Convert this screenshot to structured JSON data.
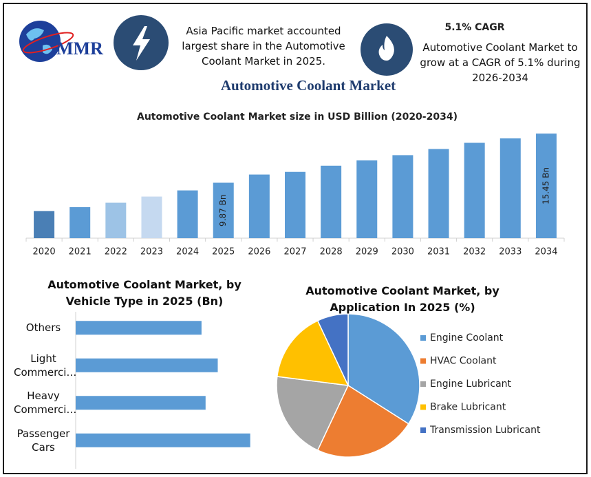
{
  "header": {
    "logo": "MMR",
    "left_note": "Asia Pacific market accounted largest share in the Automotive Coolant Market in 2025.",
    "cagr_title": "5.1% CAGR",
    "cagr_note": "Automotive Coolant Market to grow at a CAGR of 5.1% during 2026-2034",
    "title": "Automotive Coolant Market"
  },
  "chart_data": [
    {
      "type": "bar",
      "title": "Automotive Coolant Market size in USD Billion (2020-2034)",
      "categories": [
        "2020",
        "2021",
        "2022",
        "2023",
        "2024",
        "2025",
        "2026",
        "2027",
        "2028",
        "2029",
        "2030",
        "2031",
        "2032",
        "2033",
        "2034"
      ],
      "values": [
        6.65,
        7.1,
        7.6,
        8.3,
        9.0,
        9.87,
        10.8,
        11.1,
        11.8,
        12.4,
        13.0,
        13.7,
        14.4,
        14.9,
        15.45
      ],
      "value_labels": [
        null,
        null,
        null,
        null,
        null,
        "9.87 Bn",
        null,
        null,
        null,
        null,
        null,
        null,
        null,
        null,
        "15.45 Bn"
      ],
      "colors": [
        "#4a7fb5",
        "#5b9bd5",
        "#9dc3e6",
        "#c5d9f0",
        "#5b9bd5",
        "#5b9bd5",
        "#5b9bd5",
        "#5b9bd5",
        "#5b9bd5",
        "#5b9bd5",
        "#5b9bd5",
        "#5b9bd5",
        "#5b9bd5",
        "#5b9bd5",
        "#5b9bd5"
      ],
      "ylim": [
        3.58,
        16
      ]
    },
    {
      "type": "hbar",
      "title": "Automotive Coolant Market, by Vehicle Type in 2025 (Bn)",
      "categories": [
        "Others",
        "Light Commerci…",
        "Heavy Commerci…",
        "Passenger Cars"
      ],
      "values": [
        2.17,
        2.45,
        2.24,
        3.01
      ],
      "color": "#5b9bd5",
      "xlim": [
        0,
        3.5
      ]
    },
    {
      "type": "pie",
      "title": "Automotive Coolant Market, by Application In 2025 (%)",
      "categories": [
        "Engine Coolant",
        "HVAC Coolant",
        "Engine Lubricant",
        "Brake Lubricant",
        "Transmission Lubricant"
      ],
      "values": [
        34,
        23,
        20,
        16,
        7
      ],
      "colors": [
        "#5b9bd5",
        "#ed7d31",
        "#a5a5a5",
        "#ffc000",
        "#4472c4"
      ],
      "legend": "right"
    }
  ]
}
